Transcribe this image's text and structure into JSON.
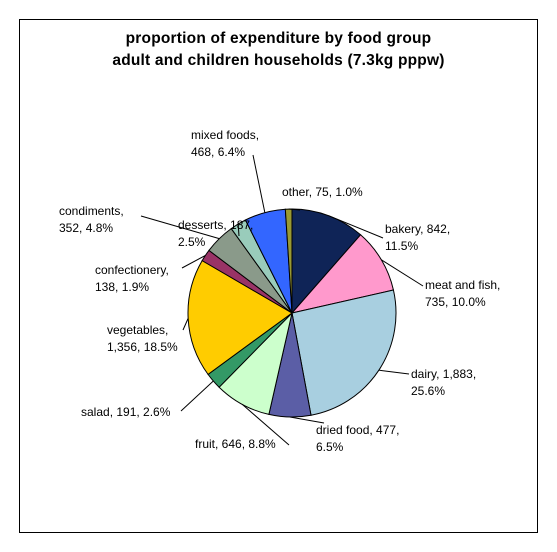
{
  "chart_data": {
    "type": "pie",
    "title": "proportion of expenditure by food group",
    "subtitle": "adult and children households (7.3kg pppw)",
    "slices": [
      {
        "name": "bakery",
        "value": 842,
        "percent": "11.5%",
        "label_lines": [
          "bakery, 842,",
          "11.5%"
        ],
        "color": "#0f2457"
      },
      {
        "name": "meat and fish",
        "value": 735,
        "percent": "10.0%",
        "label_lines": [
          "meat and fish,",
          "735, 10.0%"
        ],
        "color": "#ff99cc"
      },
      {
        "name": "dairy",
        "value": 1883,
        "percent": "25.6%",
        "label_lines": [
          "dairy, 1,883,",
          "25.6%"
        ],
        "color": "#a8cfe0"
      },
      {
        "name": "dried food",
        "value": 477,
        "percent": "6.5%",
        "label_lines": [
          "dried food, 477,",
          "6.5%"
        ],
        "color": "#5b5ea6"
      },
      {
        "name": "fruit",
        "value": 646,
        "percent": "8.8%",
        "label_lines": [
          "fruit, 646, 8.8%"
        ],
        "color": "#ccffcc"
      },
      {
        "name": "salad",
        "value": 191,
        "percent": "2.6%",
        "label_lines": [
          "salad, 191, 2.6%"
        ],
        "color": "#339966"
      },
      {
        "name": "vegetables",
        "value": 1356,
        "percent": "18.5%",
        "label_lines": [
          "vegetables,",
          "1,356, 18.5%"
        ],
        "color": "#ffcc00"
      },
      {
        "name": "confectionery",
        "value": 138,
        "percent": "1.9%",
        "label_lines": [
          "confectionery,",
          "138, 1.9%"
        ],
        "color": "#993366"
      },
      {
        "name": "condiments",
        "value": 352,
        "percent": "4.8%",
        "label_lines": [
          "condiments,",
          "352, 4.8%"
        ],
        "color": "#8a9a8a"
      },
      {
        "name": "desserts",
        "value": 187,
        "percent": "2.5%",
        "label_lines": [
          "desserts, 187,",
          "2.5%"
        ],
        "color": "#99ccbb"
      },
      {
        "name": "mixed foods",
        "value": 468,
        "percent": "6.4%",
        "label_lines": [
          "mixed foods,",
          "468, 6.4%"
        ],
        "color": "#3366ff"
      },
      {
        "name": "other",
        "value": 75,
        "percent": "1.0%",
        "label_lines": [
          "other, 75, 1.0%"
        ],
        "color": "#999933"
      }
    ],
    "start": "top (12 o'clock)",
    "direction": "clockwise",
    "legend": "none"
  }
}
